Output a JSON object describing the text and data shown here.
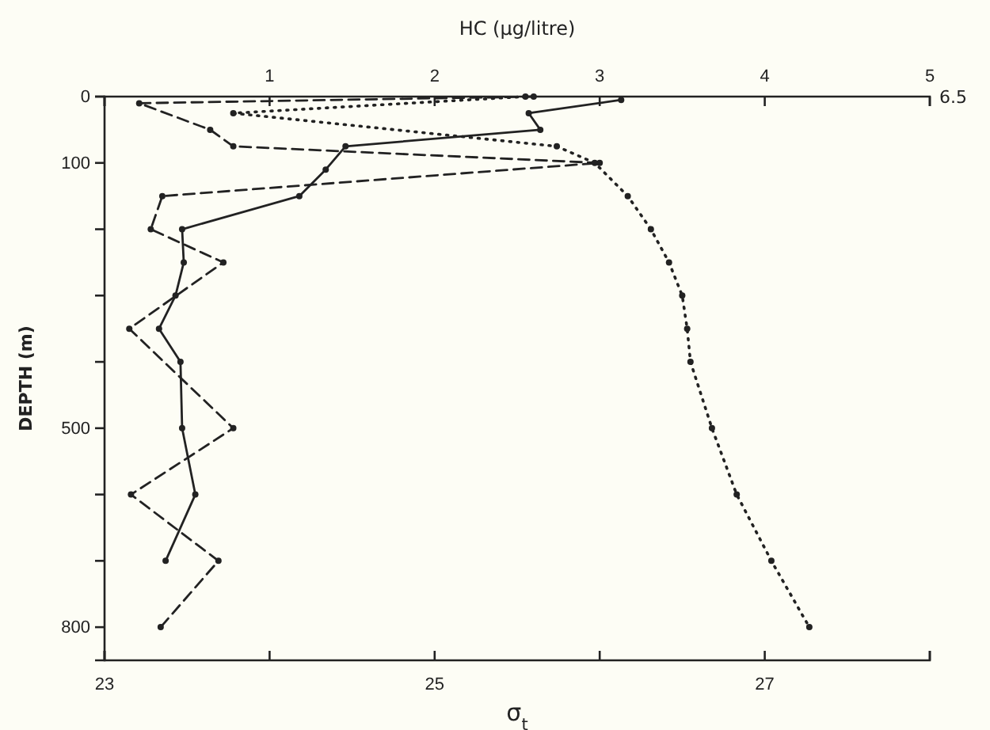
{
  "chart_data": {
    "type": "line",
    "xlabel": "σ$_{t}$",
    "x2label": "HC (µg/litre)",
    "ylabel": "DEPTH (m)",
    "xlim": [
      23,
      28
    ],
    "xticks": [
      23,
      {
        "value": 24,
        "label": null
      },
      25,
      {
        "value": 26,
        "label": null
      },
      27,
      {
        "value": 28,
        "label": null
      }
    ],
    "x2lim": [
      0,
      5
    ],
    "x2ticks": [
      {
        "value": 0,
        "label": null
      },
      1,
      2,
      3,
      4,
      5
    ],
    "ylim": [
      850,
      0
    ],
    "yticks": [
      0,
      100,
      {
        "value": 200,
        "label": null
      },
      {
        "value": 300,
        "label": null
      },
      {
        "value": 400,
        "label": null
      },
      500,
      {
        "value": 600,
        "label": null
      },
      {
        "value": 700,
        "label": null
      },
      800
    ],
    "grid": false,
    "marker": "circle",
    "annotations": [
      "6.5"
    ],
    "series": [
      {
        "axis": "x2",
        "line_style": "solid",
        "color": "#222222",
        "x": [
          3.13,
          2.57,
          2.64,
          1.46,
          1.34,
          1.18,
          0.47,
          0.48,
          0.43,
          0.33,
          0.46,
          0.47,
          0.55,
          0.37
        ],
        "values": [
          5,
          25,
          50,
          75,
          110,
          150,
          200,
          250,
          300,
          350,
          400,
          500,
          600,
          700
        ]
      },
      {
        "axis": "x2",
        "line_style": "dashed",
        "color": "#222222",
        "x": [
          2.6,
          0.21,
          0.64,
          0.78,
          3.0,
          0.35,
          0.28,
          0.72,
          0.15,
          0.78,
          0.16,
          0.69,
          0.34
        ],
        "values": [
          0,
          10,
          50,
          75,
          100,
          150,
          200,
          250,
          350,
          500,
          600,
          700,
          800
        ]
      },
      {
        "line_style": "dotted",
        "color": "#222222",
        "x": [
          25.55,
          23.78,
          25.74,
          25.97,
          26.17,
          26.31,
          26.42,
          26.5,
          26.53,
          26.55,
          26.68,
          26.83,
          27.04,
          27.27
        ],
        "values": [
          0,
          25,
          75,
          100,
          150,
          200,
          250,
          300,
          350,
          400,
          500,
          600,
          700,
          800
        ]
      }
    ]
  }
}
